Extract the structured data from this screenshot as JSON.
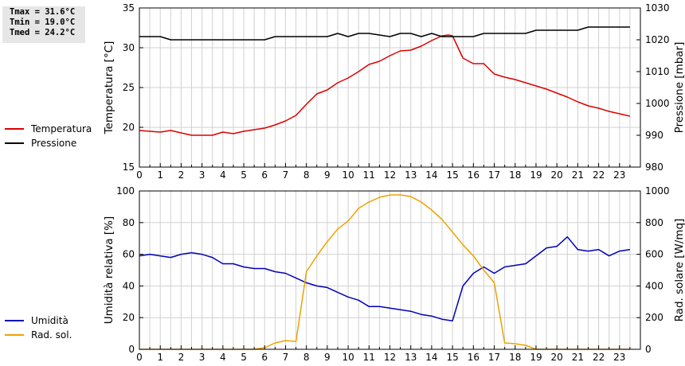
{
  "stats": {
    "tmax": "Tmax = 31.6°C",
    "tmin": "Tmin = 19.0°C",
    "tmed": "Tmed = 24.2°C"
  },
  "legend_top": [
    {
      "label": "Temperatura",
      "color": "#dd0000"
    },
    {
      "label": "Pressione",
      "color": "#000000"
    }
  ],
  "legend_bottom": [
    {
      "label": "Umidità",
      "color": "#0000bb"
    },
    {
      "label": "Rad. sol.",
      "color": "#f0a000"
    }
  ],
  "chart_data": [
    {
      "type": "line",
      "x_ticks": [
        0,
        1,
        2,
        3,
        4,
        5,
        6,
        7,
        8,
        9,
        10,
        11,
        12,
        13,
        14,
        15,
        16,
        17,
        18,
        19,
        20,
        21,
        22,
        23
      ],
      "xlim": [
        0,
        24
      ],
      "grid": true,
      "ylabel": "Temperatura [°C]",
      "ylim": [
        15,
        35
      ],
      "y_ticks": [
        15,
        20,
        25,
        30,
        35
      ],
      "ylabel_right": "Pressione [mbar]",
      "ylim_right": [
        980,
        1030
      ],
      "y_ticks_right": [
        980,
        990,
        1000,
        1010,
        1020,
        1030
      ],
      "series": [
        {
          "name": "Temperatura",
          "axis": "left",
          "color": "#dd0000",
          "x": [
            0,
            0.5,
            1,
            1.5,
            2,
            2.5,
            3,
            3.5,
            4,
            4.5,
            5,
            5.5,
            6,
            6.5,
            7,
            7.5,
            8,
            8.5,
            9,
            9.5,
            10,
            10.5,
            11,
            11.5,
            12,
            12.5,
            13,
            13.5,
            14,
            14.5,
            14.8,
            15,
            15.5,
            16,
            16.5,
            17,
            17.5,
            18,
            18.5,
            19,
            19.5,
            20,
            20.5,
            21,
            21.5,
            22,
            22.5,
            23,
            23.5
          ],
          "values": [
            19.6,
            19.5,
            19.4,
            19.6,
            19.3,
            19.0,
            19.0,
            19.0,
            19.4,
            19.2,
            19.5,
            19.7,
            19.9,
            20.3,
            20.8,
            21.5,
            22.9,
            24.2,
            24.7,
            25.6,
            26.2,
            27.0,
            27.9,
            28.3,
            29.0,
            29.6,
            29.7,
            30.2,
            30.9,
            31.5,
            31.6,
            31.5,
            28.7,
            28.0,
            28.0,
            26.7,
            26.3,
            26.0,
            25.6,
            25.2,
            24.8,
            24.3,
            23.8,
            23.2,
            22.7,
            22.4,
            22.0,
            21.7,
            21.4
          ]
        },
        {
          "name": "Pressione",
          "axis": "right",
          "color": "#000000",
          "x": [
            0,
            1,
            1.5,
            2,
            3,
            4,
            5,
            6,
            6.5,
            7,
            8,
            9,
            9.5,
            10,
            10.5,
            11,
            12,
            12.5,
            13,
            13.5,
            14,
            14.5,
            15,
            16,
            16.5,
            17,
            18,
            18.5,
            19,
            20,
            21,
            21.5,
            22,
            23,
            23.5
          ],
          "values": [
            1021,
            1021,
            1020,
            1020,
            1020,
            1020,
            1020,
            1020,
            1021,
            1021,
            1021,
            1021,
            1022,
            1021,
            1022,
            1022,
            1021,
            1022,
            1022,
            1021,
            1022,
            1021,
            1021,
            1021,
            1022,
            1022,
            1022,
            1022,
            1023,
            1023,
            1023,
            1024,
            1024,
            1024,
            1024
          ]
        }
      ]
    },
    {
      "type": "line",
      "x_ticks": [
        0,
        1,
        2,
        3,
        4,
        5,
        6,
        7,
        8,
        9,
        10,
        11,
        12,
        13,
        14,
        15,
        16,
        17,
        18,
        19,
        20,
        21,
        22,
        23
      ],
      "xlim": [
        0,
        24
      ],
      "grid": true,
      "ylabel": "Umidità relativa [%]",
      "ylim": [
        0,
        100
      ],
      "y_ticks": [
        0,
        20,
        40,
        60,
        80,
        100
      ],
      "ylabel_right": "Rad. solare [W/mq]",
      "ylim_right": [
        0,
        1000
      ],
      "y_ticks_right": [
        0,
        200,
        400,
        600,
        800,
        1000
      ],
      "series": [
        {
          "name": "Umidità",
          "axis": "left",
          "color": "#0000bb",
          "x": [
            0,
            0.5,
            1,
            1.5,
            2,
            2.5,
            3,
            3.5,
            4,
            4.5,
            5,
            5.5,
            6,
            6.5,
            7,
            7.5,
            8,
            8.5,
            9,
            9.5,
            10,
            10.5,
            11,
            11.5,
            12,
            12.5,
            13,
            13.5,
            14,
            14.5,
            15,
            15.5,
            16,
            16.5,
            17,
            17.5,
            18,
            18.5,
            19,
            19.5,
            20,
            20.5,
            21,
            21.5,
            22,
            22.5,
            23,
            23.5
          ],
          "values": [
            59,
            60,
            59,
            58,
            60,
            61,
            60,
            58,
            54,
            54,
            52,
            51,
            51,
            49,
            48,
            45,
            42,
            40,
            39,
            36,
            33,
            31,
            27,
            27,
            26,
            25,
            24,
            22,
            21,
            19,
            18,
            40,
            48,
            52,
            48,
            52,
            53,
            54,
            59,
            64,
            65,
            71,
            63,
            62,
            63,
            59,
            62,
            63
          ]
        },
        {
          "name": "Rad. sol.",
          "axis": "right",
          "color": "#f0a000",
          "x": [
            0,
            5.5,
            6,
            6.5,
            7,
            7.5,
            8,
            8.5,
            9,
            9.5,
            10,
            10.5,
            11,
            11.5,
            12,
            12.5,
            13,
            13.5,
            14,
            14.5,
            15,
            15.5,
            16,
            16.5,
            17,
            17.5,
            18,
            18.5,
            19,
            23.5
          ],
          "values": [
            0,
            0,
            10,
            40,
            55,
            50,
            490,
            590,
            680,
            760,
            810,
            890,
            930,
            960,
            975,
            975,
            965,
            930,
            880,
            820,
            740,
            660,
            590,
            500,
            420,
            40,
            35,
            25,
            0,
            0
          ]
        }
      ]
    }
  ]
}
